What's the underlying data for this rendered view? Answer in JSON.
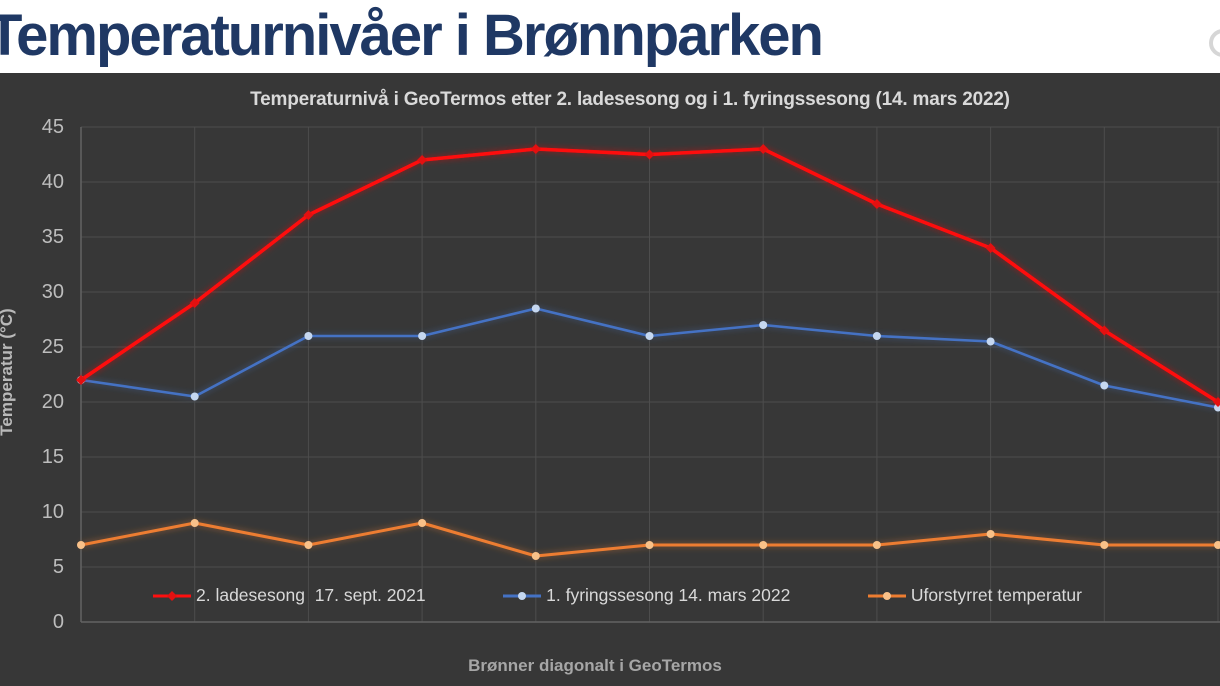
{
  "page": {
    "main_title": "Temperaturnivåer i Brønnparken",
    "colors": {
      "header_background": "#ffffff",
      "main_title_color": "#1f3864",
      "chart_background": "#373737",
      "gridline": "#4d4d4d",
      "axis_line": "#636363",
      "tick_label": "#bdbdbd",
      "chart_text": "#d9d9d9"
    }
  },
  "chart_data": {
    "type": "line",
    "title": "Temperaturnivå i GeoTermos etter 2. ladesesong og i 1. fyringssesong (14. mars 2022)",
    "xlabel": "Brønner diagonalt i GeoTermos",
    "ylabel": "Temperatur (°C)",
    "ylim": [
      0,
      45
    ],
    "yticks": [
      0,
      5,
      10,
      15,
      20,
      25,
      30,
      35,
      40,
      45
    ],
    "x_point_count": 11,
    "x_tick_labels_visible": false,
    "grid": "both",
    "legend_position": "bottom-inside",
    "series": [
      {
        "name": "1. fyringssesong 14. mars 2022",
        "color": "#4472c4",
        "marker": "circle",
        "marker_color": "#c5d7f0",
        "values": [
          22,
          20.5,
          26,
          26,
          28.5,
          26,
          27,
          26,
          25.5,
          21.5,
          19.5
        ]
      },
      {
        "name": "Uforstyrret temperatur",
        "color": "#ed7d31",
        "marker": "circle",
        "marker_color": "#f9c189",
        "values": [
          7,
          9,
          7,
          9,
          6,
          7,
          7,
          7,
          8,
          7,
          7
        ]
      },
      {
        "name": "2. ladesesong  17. sept. 2021",
        "color": "#fe0f0f",
        "marker": "diamond",
        "marker_color": "#e41010",
        "values": [
          22,
          29,
          37,
          42,
          43,
          42.5,
          43,
          38,
          34,
          26.5,
          20
        ]
      }
    ],
    "legend_order": [
      2,
      0,
      1
    ]
  }
}
